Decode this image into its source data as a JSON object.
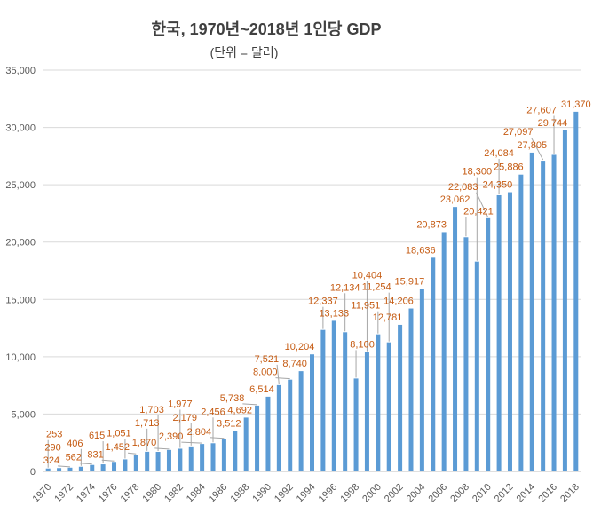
{
  "chart_data": {
    "type": "bar",
    "title": "한국, 1970년~2018년 1인당 GDP",
    "subtitle": "(단위 = 달러)",
    "xlabel": "",
    "ylabel": "",
    "ylim": [
      0,
      35000
    ],
    "yticks": [
      "0",
      "5,000",
      "10,000",
      "15,000",
      "20,000",
      "25,000",
      "30,000",
      "35,000"
    ],
    "grid": true,
    "legend": "none",
    "bar_color": "#5B9BD5",
    "label_color": "#C55A11",
    "categories": [
      1970,
      1971,
      1972,
      1973,
      1974,
      1975,
      1976,
      1977,
      1978,
      1979,
      1980,
      1981,
      1982,
      1983,
      1984,
      1985,
      1986,
      1987,
      1988,
      1989,
      1990,
      1991,
      1992,
      1993,
      1994,
      1995,
      1996,
      1997,
      1998,
      1999,
      2000,
      2001,
      2002,
      2003,
      2004,
      2005,
      2006,
      2007,
      2008,
      2009,
      2010,
      2011,
      2012,
      2013,
      2014,
      2015,
      2016,
      2017,
      2018
    ],
    "xtick_labels": [
      "1970",
      "1972",
      "1974",
      "1976",
      "1978",
      "1980",
      "1982",
      "1984",
      "1986",
      "1988",
      "1990",
      "1992",
      "1994",
      "1996",
      "1998",
      "2000",
      "2002",
      "2004",
      "2006",
      "2008",
      "2010",
      "2012",
      "2014",
      "2016",
      "2018"
    ],
    "values": [
      253,
      290,
      324,
      406,
      562,
      615,
      831,
      1051,
      1452,
      1713,
      1703,
      1870,
      1977,
      2179,
      2390,
      2456,
      2804,
      3512,
      4692,
      5738,
      6514,
      7521,
      8000,
      8740,
      10204,
      12337,
      13133,
      12134,
      8100,
      10404,
      11951,
      11254,
      12781,
      14206,
      15917,
      18636,
      20873,
      23062,
      20421,
      18300,
      22083,
      24084,
      24350,
      25886,
      27805,
      27097,
      27607,
      29744,
      31370
    ],
    "data_labels": [
      "253",
      "290",
      "324",
      "406",
      "562",
      "615",
      "831",
      "1,051",
      "1,452",
      "1,713",
      "1,703",
      "1,870",
      "1,977",
      "2,179",
      "2,390",
      "2,456",
      "2,804",
      "3,512",
      "4,692",
      "5,738",
      "6,514",
      "7,521",
      "8,000",
      "8,740",
      "10,204",
      "12,337",
      "13,133",
      "12,134",
      "8,100",
      "10,404",
      "11,951",
      "11,254",
      "12,781",
      "14,206",
      "15,917",
      "18,636",
      "20,873",
      "23,062",
      "20,421",
      "18,300",
      "22,083",
      "24,084",
      "24,350",
      "25,886",
      "27,805",
      "27,097",
      "27,607",
      "29,744",
      "31,370"
    ]
  }
}
